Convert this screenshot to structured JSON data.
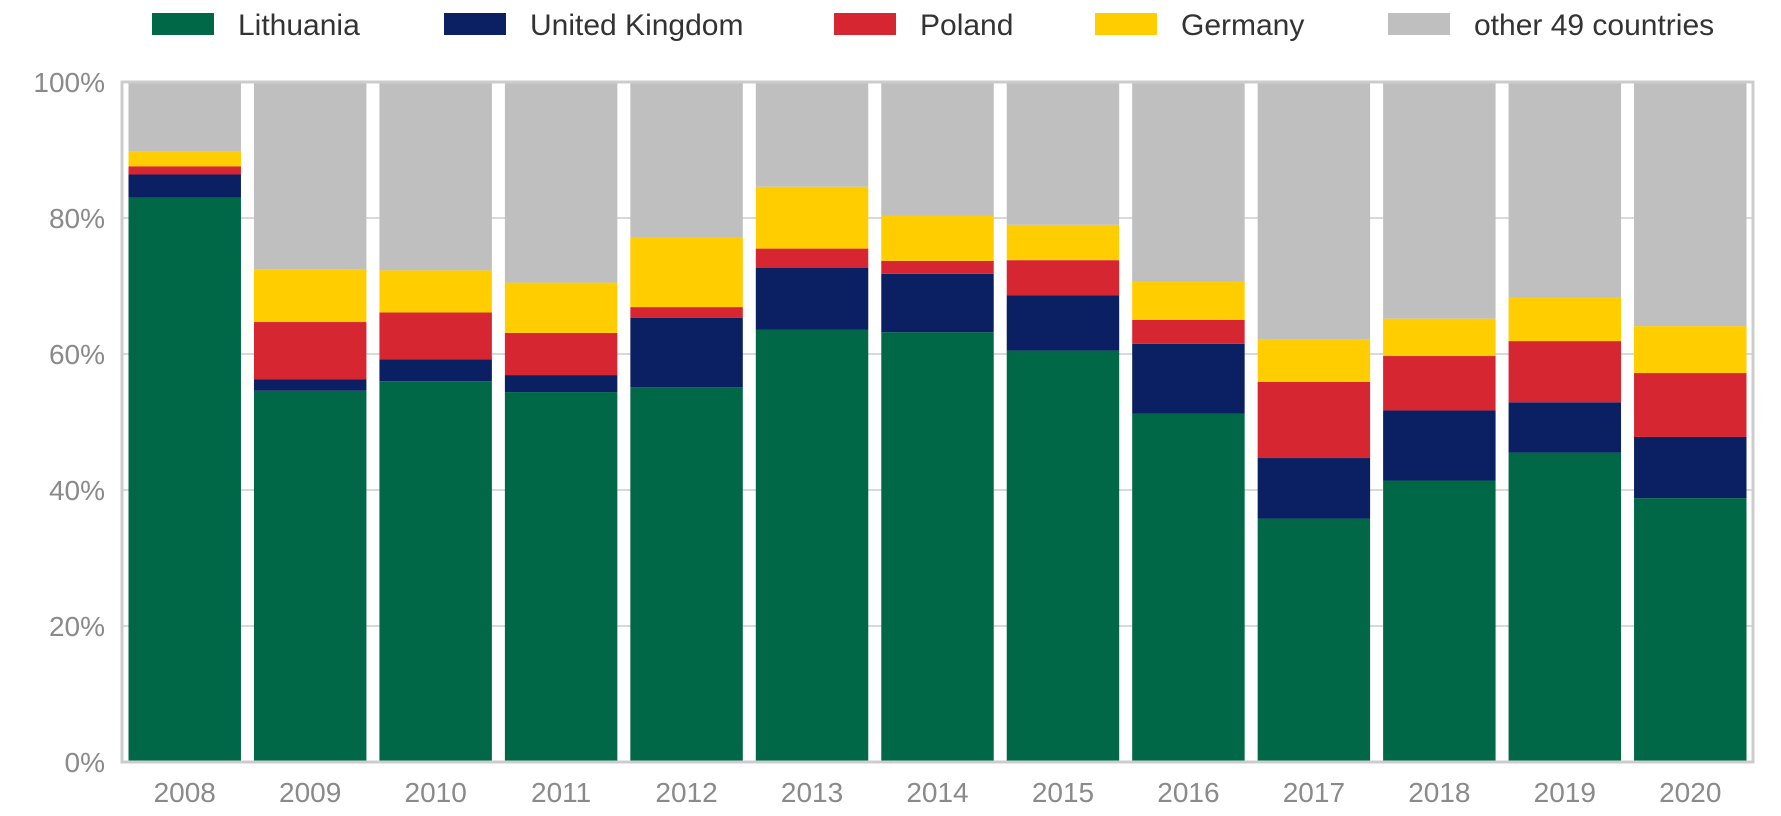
{
  "chart_data": {
    "type": "bar",
    "stacked": true,
    "normalized": true,
    "categories": [
      "2008",
      "2009",
      "2010",
      "2011",
      "2012",
      "2013",
      "2014",
      "2015",
      "2016",
      "2017",
      "2018",
      "2019",
      "2020"
    ],
    "series": [
      {
        "name": "Lithuania",
        "color": "#006847",
        "values": [
          83.0,
          54.6,
          56.0,
          54.4,
          55.1,
          63.6,
          63.2,
          60.5,
          51.2,
          35.8,
          41.4,
          45.5,
          38.8
        ]
      },
      {
        "name": "United Kingdom",
        "color": "#0b1f63",
        "values": [
          3.4,
          1.7,
          3.2,
          2.5,
          10.2,
          9.1,
          8.6,
          8.1,
          10.3,
          8.9,
          10.3,
          7.4,
          9.0
        ]
      },
      {
        "name": "Poland",
        "color": "#d52631",
        "values": [
          1.2,
          8.4,
          6.9,
          6.2,
          1.6,
          2.8,
          1.9,
          5.2,
          3.5,
          11.2,
          8.0,
          9.0,
          9.4
        ]
      },
      {
        "name": "Germany",
        "color": "#ffcd00",
        "values": [
          2.2,
          7.7,
          6.2,
          7.4,
          10.3,
          9.1,
          6.6,
          5.2,
          5.6,
          6.2,
          5.5,
          6.4,
          6.9
        ]
      },
      {
        "name": "other 49 countries",
        "color": "#bfbfbf",
        "values": [
          10.2,
          27.6,
          27.7,
          29.5,
          22.8,
          15.4,
          19.7,
          21.0,
          29.4,
          37.9,
          34.8,
          31.7,
          35.9
        ]
      }
    ],
    "yticks": [
      "0%",
      "20%",
      "40%",
      "60%",
      "80%",
      "100%"
    ],
    "ylim": [
      0,
      100
    ],
    "legend_position": "top",
    "grid": true
  }
}
